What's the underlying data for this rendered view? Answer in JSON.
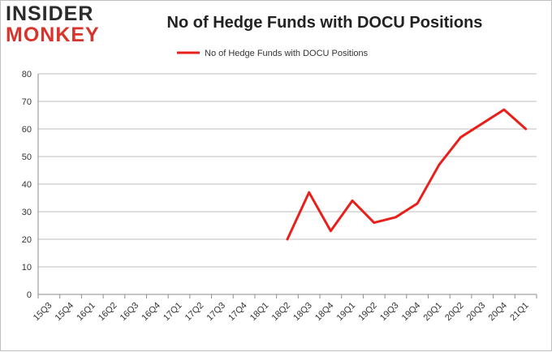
{
  "logo": {
    "top": "INSIDER",
    "bottom": "MONKEY"
  },
  "colors": {
    "series": "#e8201c",
    "grid": "#bdbdbd",
    "axis": "#8c8c8c",
    "brand_red": "#d9342b"
  },
  "chart_data": {
    "type": "line",
    "title": "No of Hedge Funds with DOCU Positions",
    "xlabel": "",
    "ylabel": "",
    "ylim": [
      0,
      80
    ],
    "yticks": [
      0,
      10,
      20,
      30,
      40,
      50,
      60,
      70,
      80
    ],
    "grid": true,
    "legend_position": "top-center",
    "categories": [
      "15Q3",
      "15Q4",
      "16Q1",
      "16Q2",
      "16Q3",
      "16Q4",
      "17Q1",
      "17Q2",
      "17Q3",
      "17Q4",
      "18Q1",
      "18Q2",
      "18Q3",
      "18Q4",
      "19Q1",
      "19Q2",
      "19Q3",
      "19Q4",
      "20Q1",
      "20Q2",
      "20Q3",
      "20Q4",
      "21Q1"
    ],
    "series": [
      {
        "name": "No of Hedge Funds with DOCU Positions",
        "values": [
          null,
          null,
          null,
          null,
          null,
          null,
          null,
          null,
          null,
          null,
          null,
          20,
          37,
          23,
          34,
          26,
          28,
          33,
          47,
          57,
          62,
          67,
          60
        ]
      }
    ]
  }
}
